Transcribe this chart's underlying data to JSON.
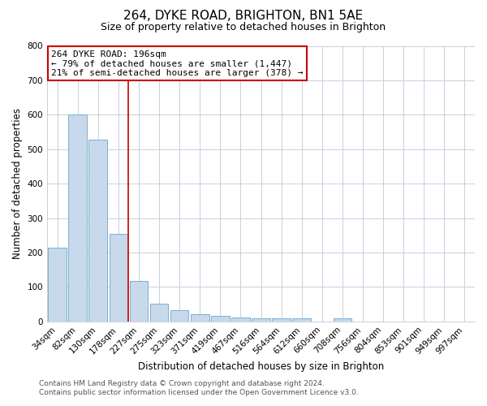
{
  "title": "264, DYKE ROAD, BRIGHTON, BN1 5AE",
  "subtitle": "Size of property relative to detached houses in Brighton",
  "xlabel": "Distribution of detached houses by size in Brighton",
  "ylabel": "Number of detached properties",
  "footer_line1": "Contains HM Land Registry data © Crown copyright and database right 2024.",
  "footer_line2": "Contains public sector information licensed under the Open Government Licence v3.0.",
  "bar_labels": [
    "34sqm",
    "82sqm",
    "130sqm",
    "178sqm",
    "227sqm",
    "275sqm",
    "323sqm",
    "371sqm",
    "419sqm",
    "467sqm",
    "516sqm",
    "564sqm",
    "612sqm",
    "660sqm",
    "708sqm",
    "756sqm",
    "804sqm",
    "853sqm",
    "901sqm",
    "949sqm",
    "997sqm"
  ],
  "bar_values": [
    215,
    600,
    527,
    255,
    118,
    52,
    33,
    20,
    17,
    12,
    10,
    9,
    9,
    0,
    8,
    0,
    0,
    0,
    0,
    0,
    0
  ],
  "bar_color": "#c8d9eb",
  "bar_edge_color": "#7aafd4",
  "vline_x": 3.5,
  "vline_color": "#cc0000",
  "annotation_line1": "264 DYKE ROAD: 196sqm",
  "annotation_line2": "← 79% of detached houses are smaller (1,447)",
  "annotation_line3": "21% of semi-detached houses are larger (378) →",
  "annotation_box_color": "#ffffff",
  "annotation_box_edge_color": "#cc0000",
  "ylim": [
    0,
    800
  ],
  "yticks": [
    0,
    100,
    200,
    300,
    400,
    500,
    600,
    700,
    800
  ],
  "grid_color": "#c8d0dc",
  "figure_bg": "#ffffff",
  "plot_bg": "#ffffff",
  "title_fontsize": 11,
  "subtitle_fontsize": 9,
  "axis_label_fontsize": 8.5,
  "tick_fontsize": 7.5,
  "annotation_fontsize": 8,
  "footer_fontsize": 6.5
}
